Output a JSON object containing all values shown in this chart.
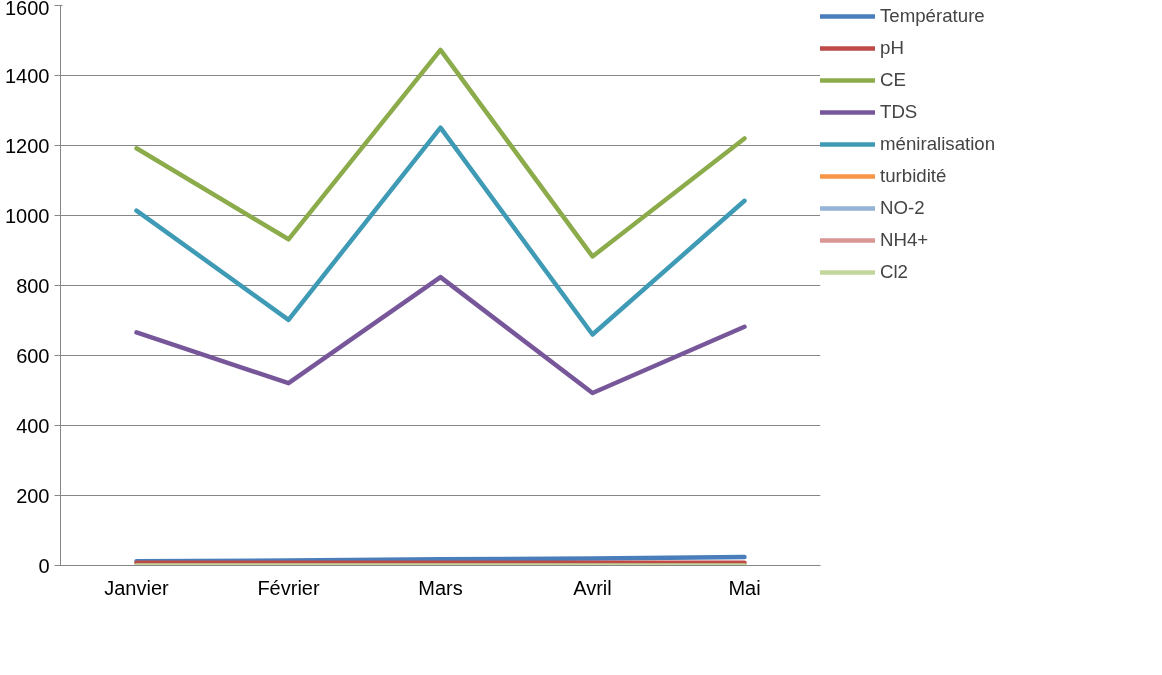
{
  "chart_data": {
    "type": "line",
    "categories": [
      "Janvier",
      "Février",
      "Mars",
      "Avril",
      "Mai"
    ],
    "ylim": [
      0,
      1600
    ],
    "yticks": [
      0,
      200,
      400,
      600,
      800,
      1000,
      1200,
      1400,
      1600
    ],
    "grid": "y",
    "legend": "right",
    "marker": "none",
    "line_style": "solid",
    "series": [
      {
        "name": "Température",
        "color": "#4a7ebb",
        "values": [
          12,
          14,
          18,
          20,
          24
        ]
      },
      {
        "name": "pH",
        "color": "#be4b48",
        "values": [
          8,
          8,
          8,
          8,
          8
        ]
      },
      {
        "name": "CE",
        "color": "#8cac4c",
        "values": [
          1192,
          932,
          1473,
          883,
          1220
        ]
      },
      {
        "name": "TDS",
        "color": "#77579a",
        "values": [
          666,
          521,
          824,
          493,
          682
        ]
      },
      {
        "name": "méniralisation",
        "color": "#3f9bb5",
        "values": [
          1014,
          702,
          1251,
          660,
          1042
        ]
      },
      {
        "name": "turbidité",
        "color": "#f79646",
        "values": [
          null,
          null,
          null,
          null,
          null
        ]
      },
      {
        "name": "NO-2",
        "color": "#95b3d7",
        "values": [
          null,
          null,
          null,
          null,
          null
        ]
      },
      {
        "name": "NH4+",
        "color": "#d99694",
        "values": [
          null,
          null,
          null,
          null,
          null
        ]
      },
      {
        "name": "Cl2",
        "color": "#c3d69b",
        "values": [
          0,
          0,
          0,
          0,
          0
        ]
      }
    ]
  }
}
